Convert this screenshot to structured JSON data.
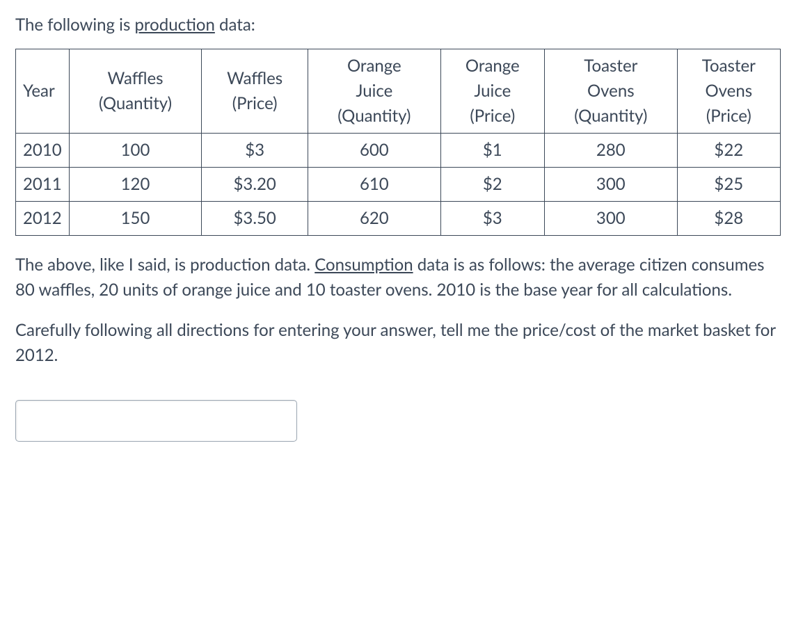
{
  "intro": {
    "pre": "The following is ",
    "underlined": "production",
    "post": " data:"
  },
  "table": {
    "headers": {
      "year": "Year",
      "waffles_qty": "Waffles (Quantity)",
      "waffles_price": "Waffles (Price)",
      "oj_qty": "Orange Juice (Quantity)",
      "oj_price": "Orange Juice (Price)",
      "toaster_qty": "Toaster Ovens (Quantity)",
      "toaster_price": "Toaster Ovens (Price)"
    },
    "rows": [
      {
        "year": "2010",
        "waffles_qty": "100",
        "waffles_price": "$3",
        "oj_qty": "600",
        "oj_price": "$1",
        "toaster_qty": "280",
        "toaster_price": "$22"
      },
      {
        "year": "2011",
        "waffles_qty": "120",
        "waffles_price": "$3.20",
        "oj_qty": "610",
        "oj_price": "$2",
        "toaster_qty": "300",
        "toaster_price": "$25"
      },
      {
        "year": "2012",
        "waffles_qty": "150",
        "waffles_price": "$3.50",
        "oj_qty": "620",
        "oj_price": "$3",
        "toaster_qty": "300",
        "toaster_price": "$28"
      }
    ]
  },
  "para1": {
    "pre": "The above, like I said, is production data.  ",
    "underlined": "Consumption",
    "post": " data is as follows: the average citizen consumes 80 waffles, 20 units of orange juice and 10 toaster ovens.  2010 is the base year for all calculations."
  },
  "para2": "Carefully following all directions for entering your answer, tell me the price/cost of the market basket for 2012.",
  "answer": {
    "value": "",
    "placeholder": ""
  }
}
